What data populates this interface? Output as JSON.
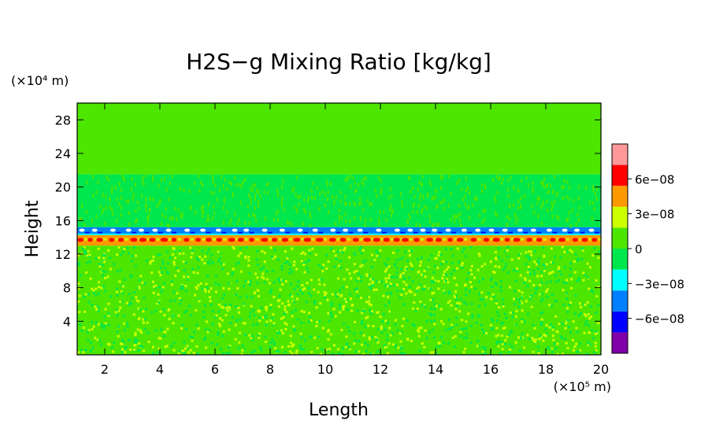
{
  "chart_data": {
    "type": "heatmap",
    "title": "H2S−g Mixing Ratio [kg/kg]",
    "xlabel": "Length",
    "ylabel": "Height",
    "x_unit": "(×10⁵ m)",
    "y_unit": "(×10⁴ m)",
    "xlim": [
      1,
      20
    ],
    "ylim": [
      0,
      30
    ],
    "x_ticks": [
      2,
      4,
      6,
      8,
      10,
      12,
      14,
      16,
      18,
      20
    ],
    "y_ticks": [
      4,
      8,
      12,
      16,
      20,
      24,
      28
    ],
    "colorbar": {
      "levels": [
        -9e-08,
        -7.5e-08,
        -4.5e-08,
        -1.5e-08,
        1.5e-08,
        4.5e-08,
        7.5e-08,
        9e-08
      ],
      "colors": [
        "#7f00a8",
        "#0000ff",
        "#0080ff",
        "#00ffff",
        "#00e64d",
        "#4de600",
        "#ccff00",
        "#ff9900",
        "#ff0000",
        "#ff9999"
      ],
      "tick_labels": [
        "6e−08",
        "3e−08",
        "0",
        "−3e−08",
        "−6e−08"
      ],
      "tick_values": [
        6e-08,
        3e-08,
        0,
        -3e-08,
        -6e-08
      ]
    },
    "bands": [
      {
        "y_from": 21.5,
        "y_to": 30,
        "color": "#4de600"
      },
      {
        "y_from": 15.2,
        "y_to": 21.5,
        "color": "#00e64d"
      },
      {
        "y_from": 14.4,
        "y_to": 15.2,
        "color": "#0080ff"
      },
      {
        "y_from": 13.0,
        "y_to": 14.4,
        "color": "#ff9900"
      },
      {
        "y_from": 0,
        "y_to": 13.0,
        "color": "#4de600"
      }
    ]
  }
}
